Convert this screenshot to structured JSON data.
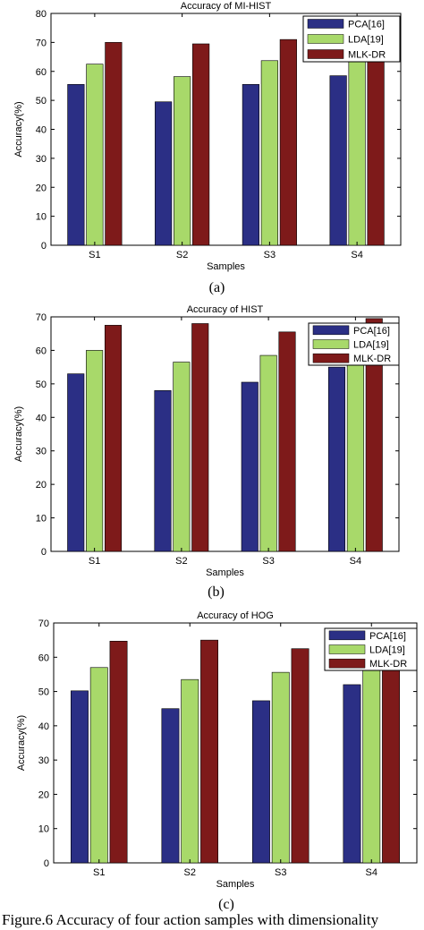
{
  "charts": [
    {
      "panel_label": "(a)",
      "chart_data": {
        "type": "bar",
        "title": "Accuracy of MI-HIST",
        "xlabel": "Samples",
        "ylabel": "Accuracy(%)",
        "categories": [
          "S1",
          "S2",
          "S3",
          "S4"
        ],
        "ylim": [
          0,
          80
        ],
        "yticks": [
          0,
          10,
          20,
          30,
          40,
          50,
          60,
          70,
          80
        ],
        "grid": false,
        "legend_position": "top-right",
        "series": [
          {
            "name": "PCA[16]",
            "color": "#2b2f85",
            "values": [
              55.5,
              49.5,
              55.5,
              58.5
            ]
          },
          {
            "name": "LDA[19]",
            "color": "#a8d96a",
            "values": [
              62.5,
              58.2,
              63.7,
              66.0
            ]
          },
          {
            "name": "MLK-DR",
            "color": "#7e1a1a",
            "values": [
              70.0,
              69.5,
              71.0,
              70.5
            ]
          }
        ]
      }
    },
    {
      "panel_label": "(b)",
      "chart_data": {
        "type": "bar",
        "title": "Accuracy of HIST",
        "xlabel": "Samples",
        "ylabel": "Accuracy(%)",
        "categories": [
          "S1",
          "S2",
          "S3",
          "S4"
        ],
        "ylim": [
          0,
          70
        ],
        "yticks": [
          0,
          10,
          20,
          30,
          40,
          50,
          60,
          70
        ],
        "grid": false,
        "legend_position": "top-right",
        "series": [
          {
            "name": "PCA[16]",
            "color": "#2b2f85",
            "values": [
              53.0,
              48.0,
              50.5,
              55.0
            ]
          },
          {
            "name": "LDA[19]",
            "color": "#a8d96a",
            "values": [
              60.0,
              56.5,
              58.5,
              61.0
            ]
          },
          {
            "name": "MLK-DR",
            "color": "#7e1a1a",
            "values": [
              67.5,
              68.0,
              65.5,
              69.5
            ]
          }
        ]
      }
    },
    {
      "panel_label": "(c)",
      "chart_data": {
        "type": "bar",
        "title": "Accuracy of HOG",
        "xlabel": "Samples",
        "ylabel": "Accuracy(%)",
        "categories": [
          "S1",
          "S2",
          "S3",
          "S4"
        ],
        "ylim": [
          0,
          70
        ],
        "yticks": [
          0,
          10,
          20,
          30,
          40,
          50,
          60,
          70
        ],
        "grid": false,
        "legend_position": "top-right",
        "series": [
          {
            "name": "PCA[16]",
            "color": "#2b2f85",
            "values": [
              50.2,
              45.0,
              47.3,
              52.0
            ]
          },
          {
            "name": "LDA[19]",
            "color": "#a8d96a",
            "values": [
              57.0,
              53.5,
              55.6,
              58.5
            ]
          },
          {
            "name": "MLK-DR",
            "color": "#7e1a1a",
            "values": [
              64.7,
              65.0,
              62.5,
              63.0
            ]
          }
        ]
      }
    }
  ],
  "caption": "Figure.6 Accuracy of four action samples with dimensionality"
}
